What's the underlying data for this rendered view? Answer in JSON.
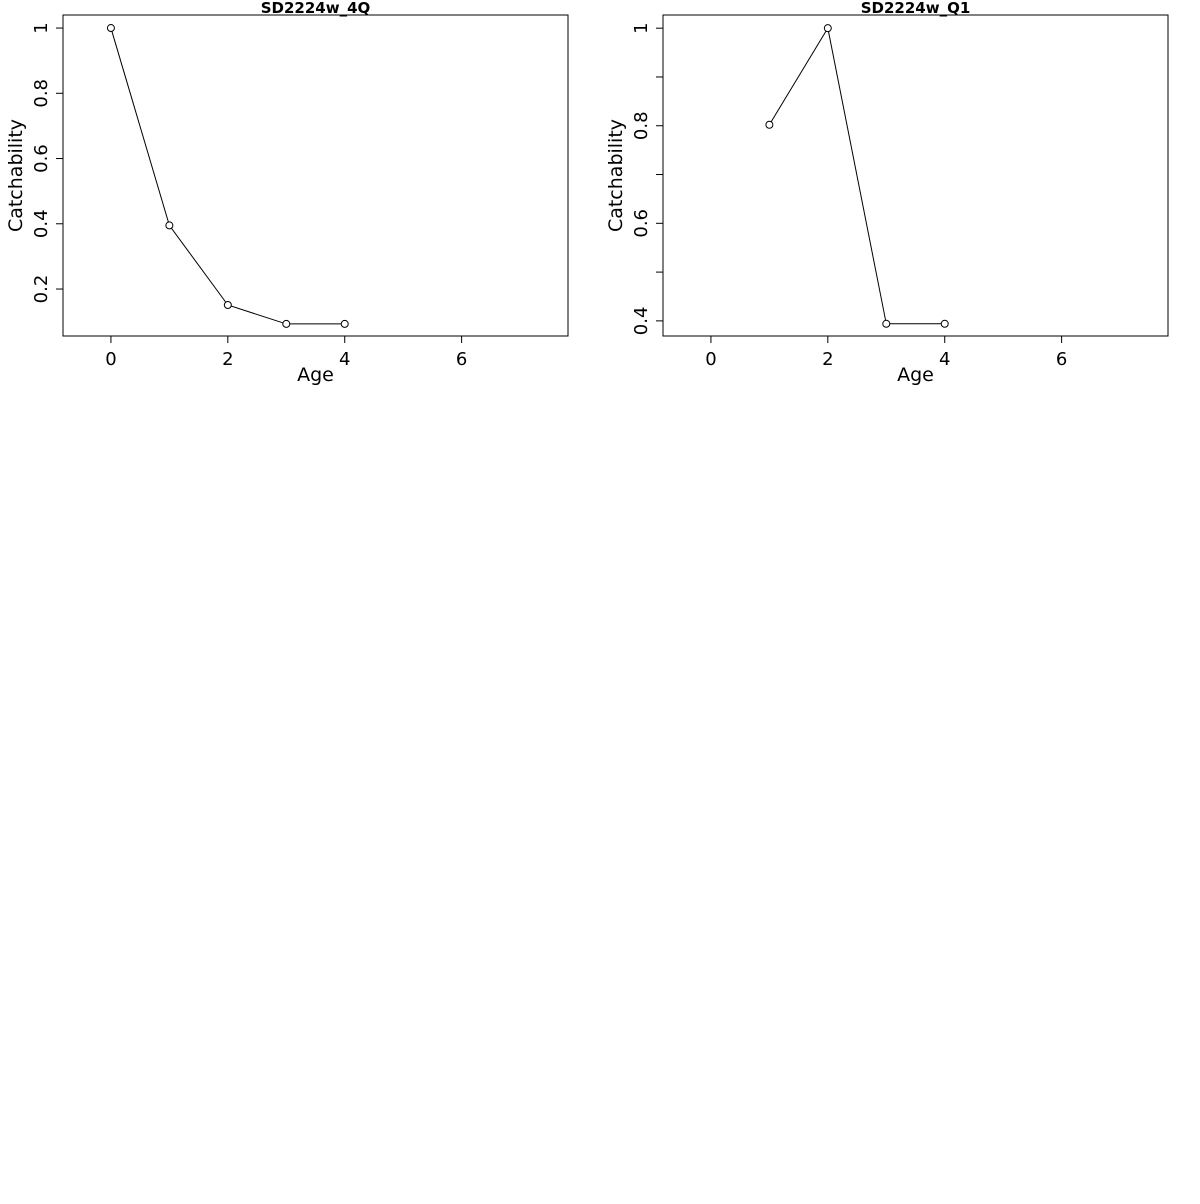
{
  "chart_data": [
    {
      "type": "line",
      "title": "SD2224w_4Q",
      "x_label": "Age",
      "y_label": "Catchability",
      "x": [
        0,
        1,
        2,
        3,
        4
      ],
      "series": [
        {
          "color": "#000000",
          "values": [
            1.0,
            0.395,
            0.151,
            0.093,
            0.093
          ]
        }
      ],
      "xlim": [
        -0.82,
        7.82
      ],
      "xticks": [
        0,
        2,
        4,
        6
      ],
      "ylim": [
        0.056,
        1.04
      ],
      "yticks": [
        0.2,
        0.4,
        0.6,
        0.8,
        1.0
      ]
    },
    {
      "type": "line",
      "title": "SD2224w_Q1",
      "x_label": "Age",
      "y_label": "Catchability",
      "x": [
        1,
        2,
        3,
        4
      ],
      "series": [
        {
          "color": "#000000",
          "values": [
            0.802,
            1.0,
            0.394,
            0.394
          ]
        }
      ],
      "xlim": [
        -0.82,
        7.82
      ],
      "xticks": [
        0,
        2,
        4,
        6
      ],
      "ylim": [
        0.369,
        1.027
      ],
      "yticks": [
        0.4,
        0.6,
        0.8,
        1.0
      ],
      "minor_yticks": [
        0.5,
        0.7,
        0.9
      ]
    }
  ]
}
